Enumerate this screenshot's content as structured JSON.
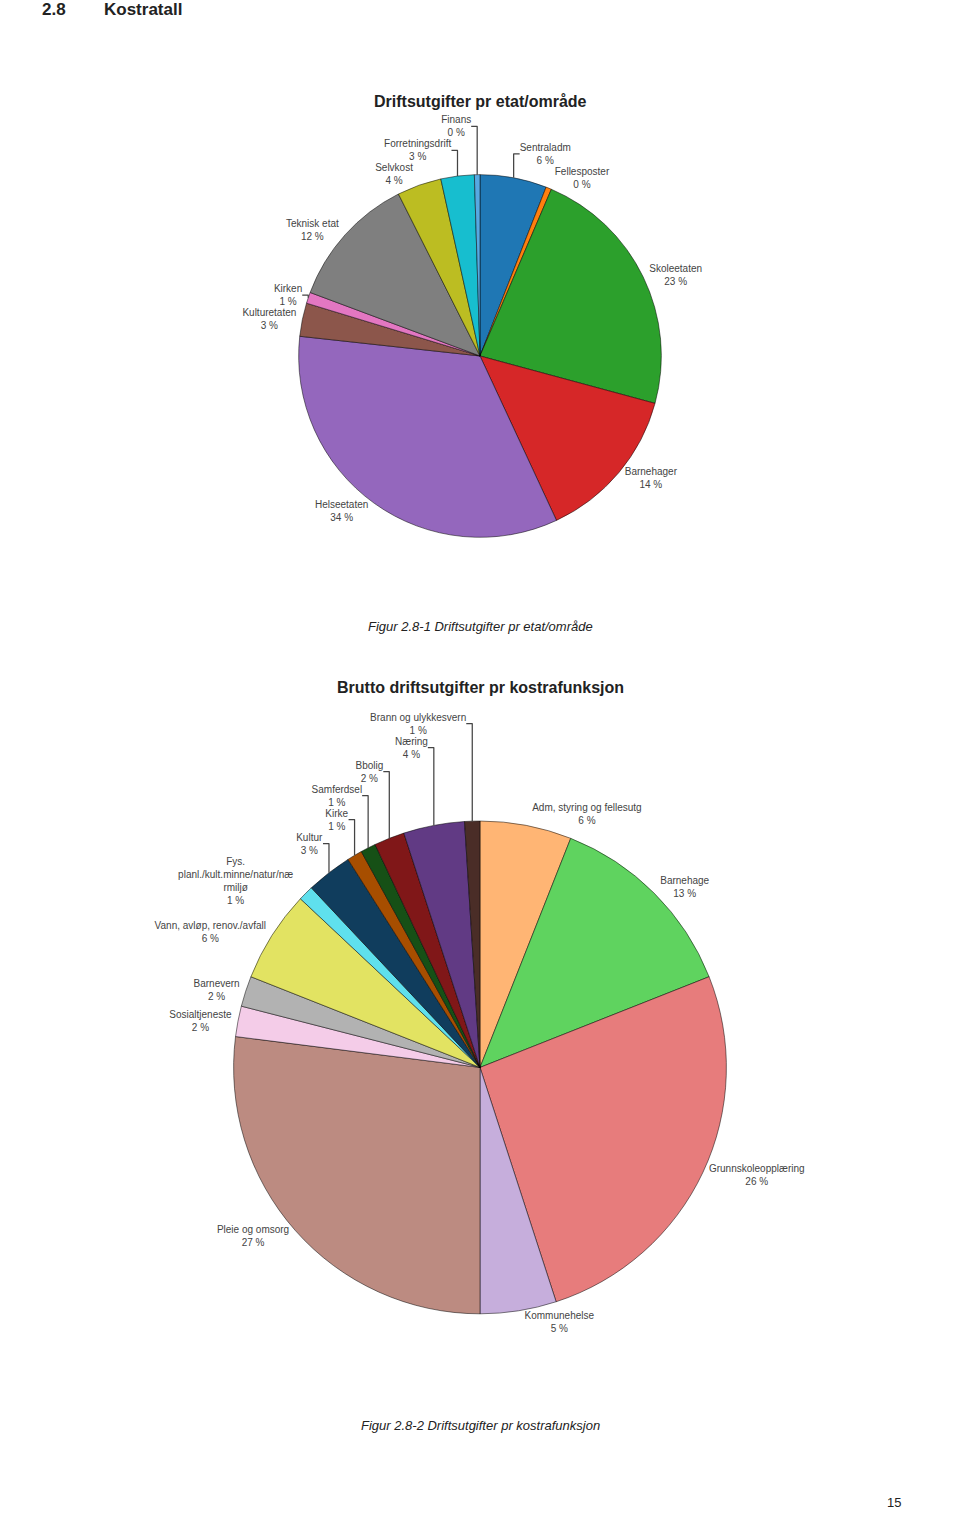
{
  "chart_data": [
    {
      "type": "pie",
      "title": "Driftsutgifter pr etat/område",
      "categories": [
        "Sentraladm",
        "Fellesposter",
        "Skoleetaten",
        "Barnehager",
        "Helseetaten",
        "Kulturetaten",
        "Kirken",
        "Teknisk etat",
        "Selvkost",
        "Forretningsdrift",
        "Finans"
      ],
      "values": [
        6,
        0.5,
        23,
        14,
        34,
        3,
        1,
        12,
        4,
        3,
        0.5
      ],
      "value_labels": [
        "6 %",
        "0 %",
        "23 %",
        "14 %",
        "34 %",
        "3 %",
        "1 %",
        "12 %",
        "4 %",
        "3 %",
        "0 %"
      ],
      "data_labels": true,
      "annotations": [
        "2.8",
        "Kostratall",
        "Figur 2.8-1 Driftsutgifter pr etat/område"
      ]
    },
    {
      "type": "pie",
      "title": "Brutto driftsutgifter pr kostrafunksjon",
      "categories": [
        "Adm, styring og fellesutg",
        "Barnehage",
        "Grunnskoleopplæring",
        "Kommunehelse",
        "Pleie og omsorg",
        "Sosialtjeneste",
        "Barnevern",
        "Vann, avløp, renov./avfall",
        "Fys.\nplanl./kult.minne/natur/næ\nrmiljø",
        "Kultur",
        "Kirke",
        "Samferdsel",
        "Bbolig",
        "Næring",
        "Brann og ulykkesvern"
      ],
      "values": [
        6,
        13,
        26,
        5,
        27,
        2,
        2,
        6,
        1,
        3,
        1,
        1,
        2,
        4,
        1
      ],
      "value_labels": [
        "6 %",
        "13 %",
        "26 %",
        "5 %",
        "27 %",
        "2 %",
        "2 %",
        "6 %",
        "1 %",
        "3 %",
        "1 %",
        "1 %",
        "2 %",
        "4 %",
        "1 %"
      ],
      "data_labels": true,
      "annotations": [
        "Figur 2.8-2 Driftsutgifter pr kostrafunksjon",
        "15"
      ]
    }
  ]
}
